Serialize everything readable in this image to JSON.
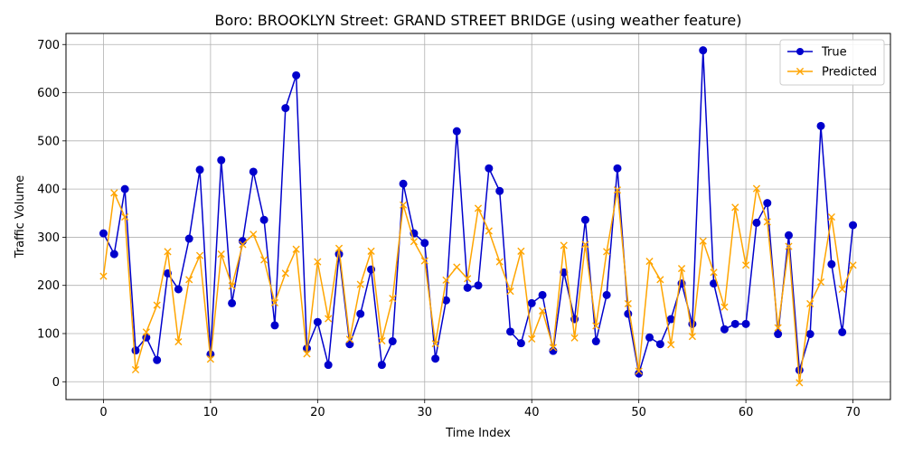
{
  "chart_data": {
    "type": "line",
    "title": "Boro: BROOKLYN Street: GRAND STREET BRIDGE (using weather feature)",
    "xlabel": "Time Index",
    "ylabel": "Traffic Volume",
    "xlim": [
      -3.5,
      73.5
    ],
    "ylim": [
      -37,
      723
    ],
    "xticks": [
      0,
      10,
      20,
      30,
      40,
      50,
      60,
      70
    ],
    "yticks": [
      0,
      100,
      200,
      300,
      400,
      500,
      600,
      700
    ],
    "grid": true,
    "legend_position": "top-right",
    "x": [
      0,
      1,
      2,
      3,
      4,
      5,
      6,
      7,
      8,
      9,
      10,
      11,
      12,
      13,
      14,
      15,
      16,
      17,
      18,
      19,
      20,
      21,
      22,
      23,
      24,
      25,
      26,
      27,
      28,
      29,
      30,
      31,
      32,
      33,
      34,
      35,
      36,
      37,
      38,
      39,
      40,
      41,
      42,
      43,
      44,
      45,
      46,
      47,
      48,
      49,
      50,
      51,
      52,
      53,
      54,
      55,
      56,
      57,
      58,
      59,
      60,
      61,
      62,
      63,
      64,
      65,
      66,
      67,
      68,
      69,
      70
    ],
    "series": [
      {
        "name": "True",
        "color": "#0000cc",
        "marker": "circle",
        "values": [
          308,
          265,
          400,
          65,
          92,
          45,
          225,
          192,
          297,
          440,
          57,
          460,
          163,
          292,
          436,
          336,
          117,
          568,
          636,
          69,
          124,
          35,
          265,
          78,
          141,
          233,
          35,
          84,
          411,
          308,
          288,
          48,
          169,
          520,
          195,
          200,
          443,
          396,
          104,
          80,
          163,
          180,
          64,
          227,
          130,
          336,
          84,
          180,
          443,
          141,
          17,
          92,
          78,
          130,
          204,
          120,
          688,
          204,
          109,
          120,
          120,
          330,
          371,
          99,
          304,
          24,
          99,
          531,
          244,
          103,
          325
        ]
      },
      {
        "name": "Predicted",
        "color": "#ffa500",
        "marker": "x",
        "values": [
          219,
          392,
          342,
          25,
          103,
          159,
          270,
          83,
          212,
          262,
          47,
          265,
          199,
          285,
          306,
          253,
          164,
          225,
          275,
          58,
          249,
          131,
          277,
          88,
          202,
          271,
          85,
          173,
          367,
          291,
          251,
          79,
          211,
          238,
          214,
          360,
          313,
          249,
          188,
          271,
          89,
          147,
          71,
          283,
          91,
          285,
          116,
          270,
          398,
          162,
          22,
          250,
          212,
          77,
          235,
          94,
          292,
          227,
          155,
          362,
          242,
          401,
          332,
          112,
          281,
          -2,
          162,
          207,
          342,
          192,
          242
        ]
      }
    ]
  }
}
